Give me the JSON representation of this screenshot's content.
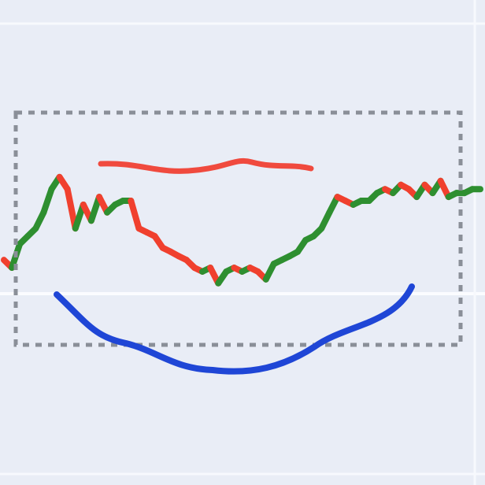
{
  "chart_data": {
    "type": "line",
    "ylim": [
      0,
      100
    ],
    "up_color": "#2e8f30",
    "down_color": "#f0402e",
    "series": [
      {
        "values": [
          46.4,
          44.8,
          49.7,
          51.3,
          52.9,
          56.2,
          61.0,
          63.5,
          61.0,
          52.9,
          57.8,
          54.5,
          59.4,
          56.2,
          57.8,
          58.6,
          58.6,
          52.9,
          52.1,
          51.3,
          48.9,
          48.1,
          47.2,
          46.4,
          44.8,
          44.0,
          44.8,
          41.6,
          44.0,
          44.8,
          44.0,
          44.8,
          44.0,
          42.4,
          45.6,
          46.4,
          47.2,
          48.1,
          50.5,
          51.3,
          52.9,
          56.2,
          59.4,
          58.6,
          57.8,
          58.6,
          58.6,
          60.2,
          61.0,
          60.2,
          61.9,
          61.0,
          59.4,
          61.9,
          60.2,
          62.7,
          59.4,
          60.2,
          60.2,
          61.0,
          61.0
        ]
      }
    ]
  }
}
